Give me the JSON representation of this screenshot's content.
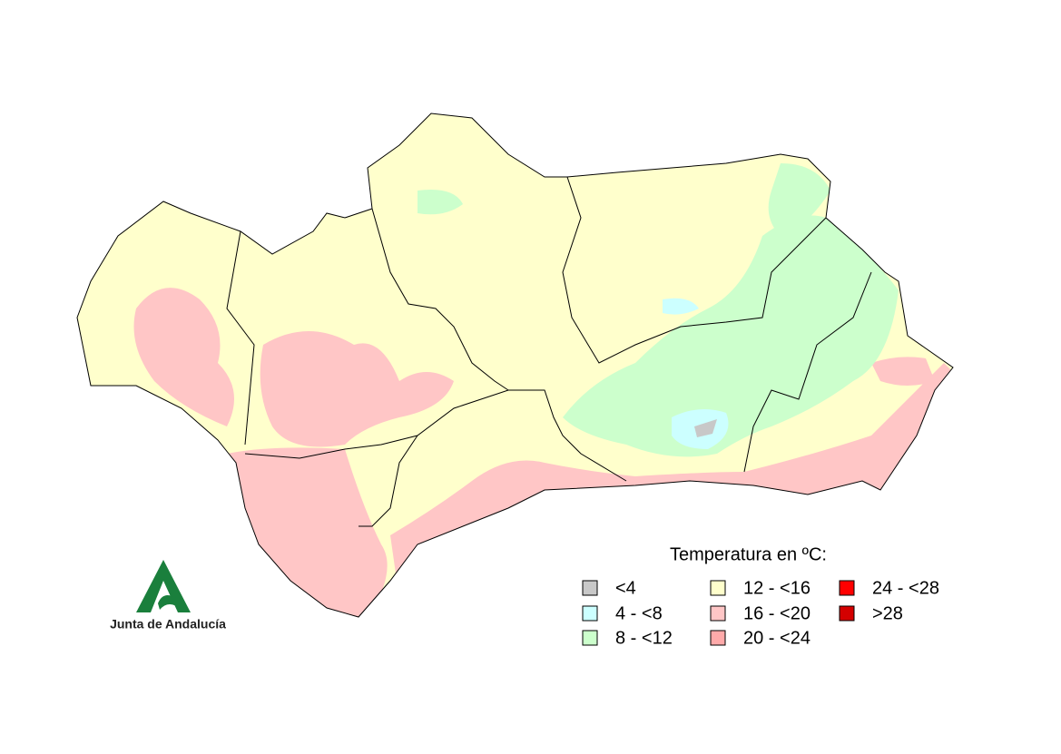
{
  "legend": {
    "title": "Temperatura en ºC:",
    "items": [
      {
        "label": "<4",
        "color": "#c8c8c8"
      },
      {
        "label": "4 - <8",
        "color": "#ccffff"
      },
      {
        "label": "8 - <12",
        "color": "#ccffcc"
      },
      {
        "label": "12 - <16",
        "color": "#ffffcc"
      },
      {
        "label": "16 - <20",
        "color": "#ffc6c6"
      },
      {
        "label": "20 - <24",
        "color": "#ffaaaa"
      },
      {
        "label": "24 - <28",
        "color": "#ff0000"
      },
      {
        "label": ">28",
        "color": "#d40000"
      }
    ]
  },
  "logo": {
    "text": "Junta de Andalucía"
  }
}
